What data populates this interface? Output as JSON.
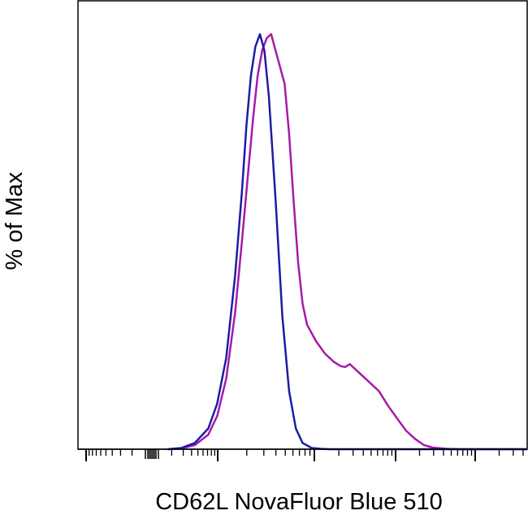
{
  "chart_data": {
    "type": "line",
    "title": "",
    "xlabel": "CD62L NovaFluor Blue 510",
    "ylabel": "% of Max",
    "x_scale": "biexponential",
    "x_tick_labels": [],
    "y_tick_labels": [],
    "xlim": [
      0,
      100
    ],
    "ylim": [
      0,
      100
    ],
    "grid": false,
    "legend": "none",
    "series": [
      {
        "color": "#1c1ca3",
        "x": [
          20,
          23,
          26,
          29,
          31,
          33,
          35,
          36.5,
          37.5,
          38.5,
          39.5,
          40.5,
          41.5,
          42.5,
          44,
          45.5,
          47,
          48.5,
          50,
          52,
          54,
          56,
          60,
          70,
          80,
          100
        ],
        "y": [
          0,
          0.3,
          1.5,
          5,
          11,
          22,
          42,
          62,
          78,
          90,
          97,
          100,
          96,
          85,
          60,
          32,
          14,
          5,
          1.5,
          0.3,
          0.1,
          0,
          0,
          0,
          0,
          0
        ]
      },
      {
        "color": "#a61aa8",
        "x": [
          20,
          23,
          26,
          29,
          31,
          33,
          35,
          36.5,
          38,
          39,
          40,
          41,
          42,
          43,
          44,
          45,
          46,
          47,
          48,
          49,
          50,
          51,
          53,
          55,
          57,
          58.5,
          59.5,
          60.5,
          62,
          63.5,
          65,
          67,
          69,
          71,
          73,
          75,
          77,
          79,
          82,
          85,
          90,
          100
        ],
        "y": [
          0,
          0.2,
          1,
          3.5,
          8,
          17,
          33,
          50,
          68,
          80,
          90,
          96,
          99,
          100,
          96,
          92,
          88,
          76,
          60,
          45,
          35,
          30,
          26,
          23,
          21,
          20,
          19.8,
          20.5,
          19,
          17.5,
          16,
          14,
          10.5,
          7.5,
          4.5,
          2.5,
          1,
          0.4,
          0.1,
          0,
          0,
          0
        ]
      }
    ]
  }
}
